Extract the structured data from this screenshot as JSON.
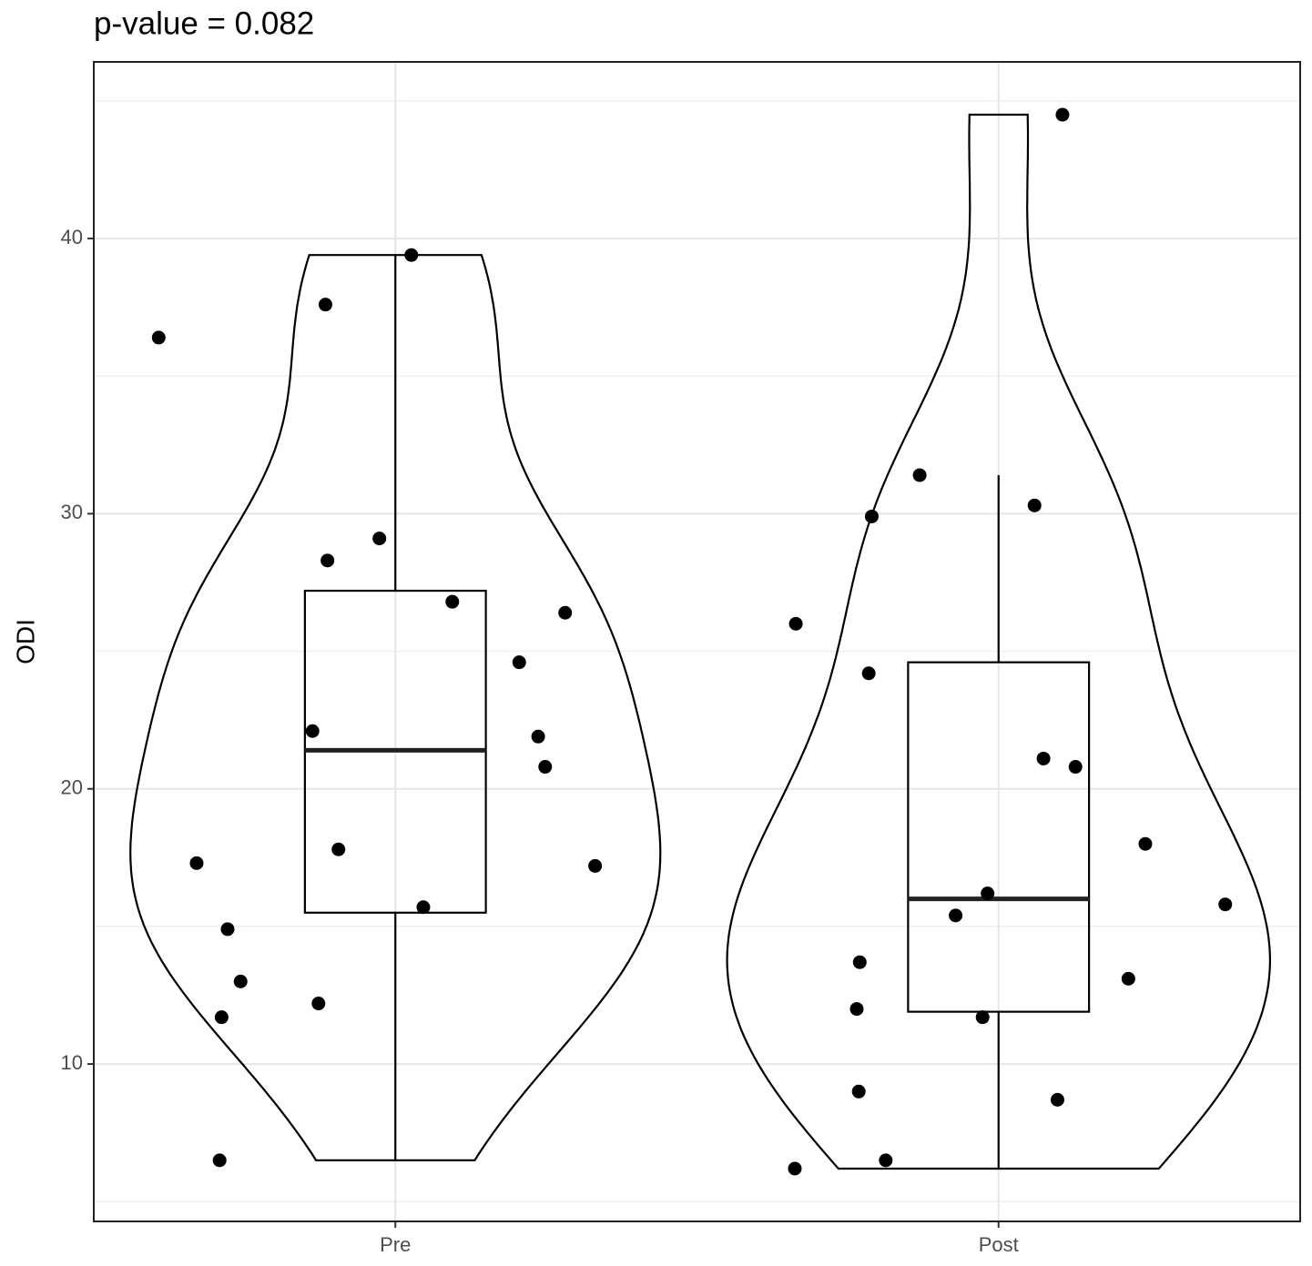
{
  "chart_data": {
    "type": "violin",
    "title": "p-value = 0.082",
    "y_label": "ODI",
    "categories": [
      "Pre",
      "Post"
    ],
    "groups": [
      {
        "values": [
          39.4,
          37.6,
          36.4,
          29.1,
          28.3,
          26.8,
          26.4,
          24.6,
          22.1,
          21.9,
          20.8,
          17.3,
          17.8,
          17.2,
          15.7,
          14.9,
          13.0,
          12.2,
          11.7,
          6.5
        ],
        "box": {
          "min": 6.5,
          "q1": 15.5,
          "median": 21.4,
          "q3": 27.2,
          "max": 39.4
        }
      },
      {
        "values": [
          44.5,
          31.4,
          30.3,
          29.9,
          26.0,
          24.2,
          21.1,
          20.8,
          18.0,
          16.2,
          15.8,
          15.4,
          13.7,
          13.1,
          12.0,
          11.7,
          9.0,
          8.7,
          6.5,
          6.2
        ],
        "box": {
          "min": 6.2,
          "q1": 11.9,
          "median": 16.0,
          "q3": 24.6,
          "max": 31.4
        }
      }
    ],
    "ylim": [
      4.28,
      46.42
    ],
    "yticks": [
      10,
      20,
      30,
      40
    ],
    "minor_yticks": [
      5,
      15,
      25,
      35,
      45
    ],
    "grid": true
  }
}
